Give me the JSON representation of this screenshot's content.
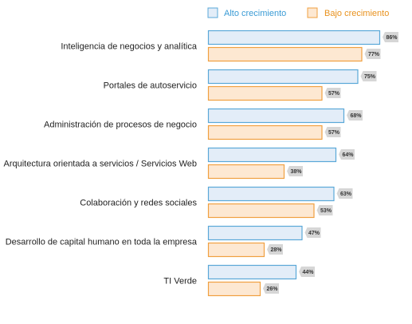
{
  "chart_data": {
    "type": "bar",
    "orientation": "horizontal",
    "categories": [
      "Inteligencia de negocios y analítica",
      "Portales de autoservicio",
      "Administración de procesos de negocio",
      "Arquitectura orientada a servicios / Servicios Web",
      "Colaboración y redes sociales",
      "Desarrollo de capital humano en toda la empresa",
      "TI Verde"
    ],
    "series": [
      {
        "name": "Alto crecimiento",
        "values": [
          86,
          75,
          68,
          64,
          63,
          47,
          44
        ],
        "value_labels": [
          "86%",
          "75%",
          "68%",
          "64%",
          "63%",
          "47%",
          "44%"
        ],
        "fill": "#e3edf8",
        "stroke": "#5aa8d8",
        "legend_color": "#3a9bd5"
      },
      {
        "name": "Bajo crecimiento",
        "values": [
          77,
          57,
          57,
          38,
          53,
          28,
          26
        ],
        "value_labels": [
          "77%",
          "57%",
          "57%",
          "38%",
          "53%",
          "28%",
          "26%"
        ],
        "fill": "#fde8d2",
        "stroke": "#f0a040",
        "legend_color": "#e8921e"
      }
    ],
    "xlim": [
      0,
      100
    ],
    "legend": "top",
    "grid": false
  }
}
